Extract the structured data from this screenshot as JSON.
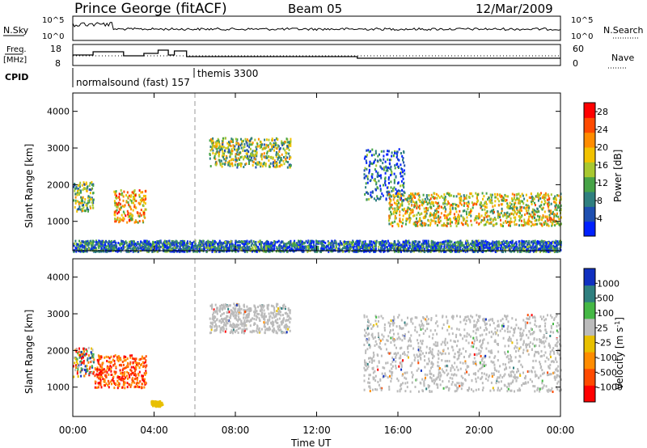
{
  "header": {
    "station": "Prince George (fitACF)",
    "beam": "Beam 05",
    "date": "12/Mar/2009"
  },
  "noise_panel": {
    "left_label": "N.Sky",
    "left_ticks": [
      "10^5",
      "10^0"
    ],
    "right_label": "N.Search",
    "right_ticks": [
      "10^5",
      "10^0"
    ]
  },
  "freq_panel": {
    "left_label_1": "Freq.",
    "left_label_2": "[MHz]",
    "left_ticks": [
      "18",
      "8"
    ],
    "right_label": "Nave",
    "right_ticks": [
      "60",
      "0"
    ]
  },
  "cpid": {
    "label": "CPID",
    "prog1": "normalsound (fast) 157",
    "prog2": "themis 3300"
  },
  "chart_data": [
    {
      "type": "heatmap",
      "panel": "power",
      "ylabel": "Slant Range [km]",
      "xlabel": "Time UT",
      "xlim": [
        0,
        24
      ],
      "ylim": [
        200,
        4500
      ],
      "yticks": [
        "4000",
        "3000",
        "2000",
        "1000"
      ],
      "colorbar": {
        "label": "Power [dB]",
        "range": [
          0,
          30
        ],
        "ticks": [
          "28",
          "24",
          "20",
          "16",
          "12",
          "8",
          "4"
        ],
        "colors": [
          "#0020ff",
          "#1e4fb0",
          "#2f7f7f",
          "#47a347",
          "#a8c830",
          "#f2c200",
          "#ff8c00",
          "#ff4a00",
          "#ff0000"
        ]
      },
      "echo_regions": [
        {
          "t": [
            0.0,
            1.0
          ],
          "range_km": [
            1300,
            2100
          ],
          "power_db": 14
        },
        {
          "t": [
            2.0,
            3.6
          ],
          "range_km": [
            1000,
            1900
          ],
          "power_db": 22
        },
        {
          "t": [
            6.7,
            10.7
          ],
          "range_km": [
            2500,
            3300
          ],
          "power_db": 14
        },
        {
          "t": [
            14.3,
            16.3
          ],
          "range_km": [
            1600,
            3000
          ],
          "power_db": 8
        },
        {
          "t": [
            15.5,
            24.0
          ],
          "range_km": [
            900,
            1800
          ],
          "power_db": 20
        },
        {
          "t": [
            0.0,
            24.0
          ],
          "range_km": [
            200,
            500
          ],
          "power_db": 6
        }
      ]
    },
    {
      "type": "heatmap",
      "panel": "velocity",
      "ylabel": "Slant Range [km]",
      "xlabel": "Time UT",
      "xlim": [
        0,
        24
      ],
      "ylim": [
        200,
        4500
      ],
      "yticks": [
        "4000",
        "3000",
        "2000",
        "1000"
      ],
      "colorbar": {
        "label": "Velocity [m s-1]",
        "ticks": [
          "1000",
          "500",
          "100",
          "25",
          "-25",
          "-100",
          "-500",
          "-1000"
        ],
        "colors": [
          "#1030c0",
          "#2f7f7f",
          "#45b845",
          "#bbbbbb",
          "#e8c000",
          "#ff8c00",
          "#ff4a00",
          "#ff0000"
        ]
      },
      "echo_regions": [
        {
          "t": [
            0.0,
            1.0
          ],
          "range_km": [
            1300,
            2100
          ],
          "velocity": "-100 to 100"
        },
        {
          "t": [
            1.0,
            3.6
          ],
          "range_km": [
            1000,
            1900
          ],
          "velocity": "-500 to -100"
        },
        {
          "t": [
            6.7,
            10.7
          ],
          "range_km": [
            2500,
            3300
          ],
          "velocity": "-25 to 25"
        },
        {
          "t": [
            14.3,
            24.0
          ],
          "range_km": [
            900,
            3000
          ],
          "velocity": "-25 to 25"
        },
        {
          "t": [
            3.8,
            4.4
          ],
          "range_km": [
            500,
            650
          ],
          "velocity": "-100"
        }
      ],
      "xticks": [
        "00:00",
        "04:00",
        "08:00",
        "12:00",
        "16:00",
        "20:00",
        "00:00"
      ]
    }
  ],
  "x_axis": {
    "ticks": [
      "00:00",
      "04:00",
      "08:00",
      "12:00",
      "16:00",
      "20:00",
      "00:00"
    ],
    "label": "Time UT"
  }
}
